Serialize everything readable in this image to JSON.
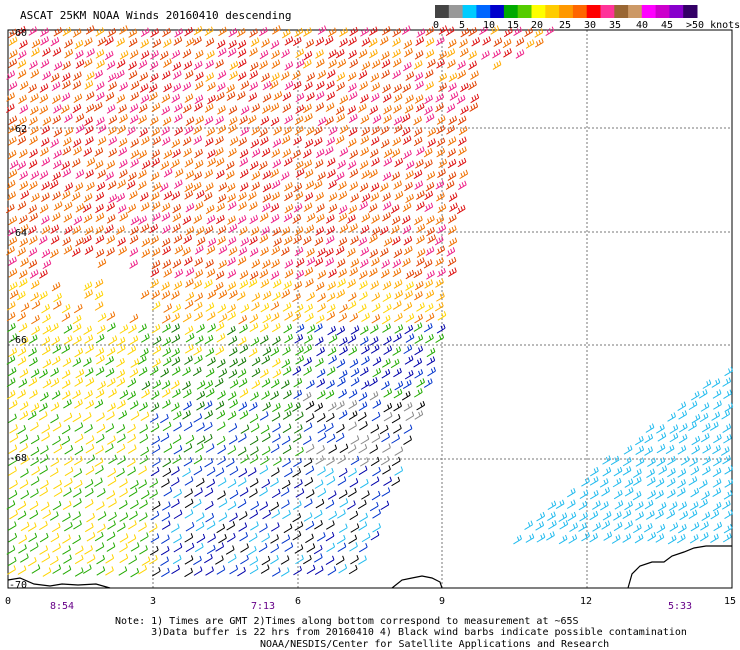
{
  "title": "ASCAT 25KM NOAA Winds 20160410 descending",
  "legend": {
    "labels": [
      "0",
      "5",
      "10",
      "15",
      "20",
      "25",
      "30",
      "35",
      "40",
      "45",
      ">50 knots"
    ],
    "colors": [
      "#444444",
      "#999999",
      "#00ccff",
      "#0066ff",
      "#0000cc",
      "#00aa00",
      "#55cc00",
      "#ffff00",
      "#ffcc00",
      "#ff9900",
      "#ff6600",
      "#ff0000",
      "#ff3399",
      "#996633",
      "#cc9966",
      "#ff00ff",
      "#cc00cc",
      "#8800cc",
      "#330066"
    ]
  },
  "axes": {
    "lat_labels": [
      "-60",
      "-62",
      "-64",
      "-66",
      "-68",
      "-70"
    ],
    "lon_labels": [
      "0",
      "3",
      "6",
      "9",
      "12",
      "15"
    ],
    "time_labels": [
      "8:54",
      "7:13",
      "5:33"
    ]
  },
  "notes": {
    "line1": "Note: 1) Times are GMT 2)Times along bottom correspond to measurement at ~65S",
    "line2": "      3)Data buffer is 22 hrs from 20160410 4) Black wind barbs indicate possible contamination",
    "credit": "NOAA/NESDIS/Center for Satellite Applications and Research"
  },
  "barb_colors": {
    "orange_red": "#e04000",
    "orange": "#f07000",
    "red": "#dd1010",
    "magenta": "#ee2288",
    "yellow": "#ffd400",
    "yellow_orange": "#ffaa00",
    "green": "#22aa00",
    "dark_green": "#117700",
    "blue": "#0033cc",
    "navy": "#0000aa",
    "cyan": "#22bbee",
    "gray": "#888888",
    "black": "#000000"
  }
}
